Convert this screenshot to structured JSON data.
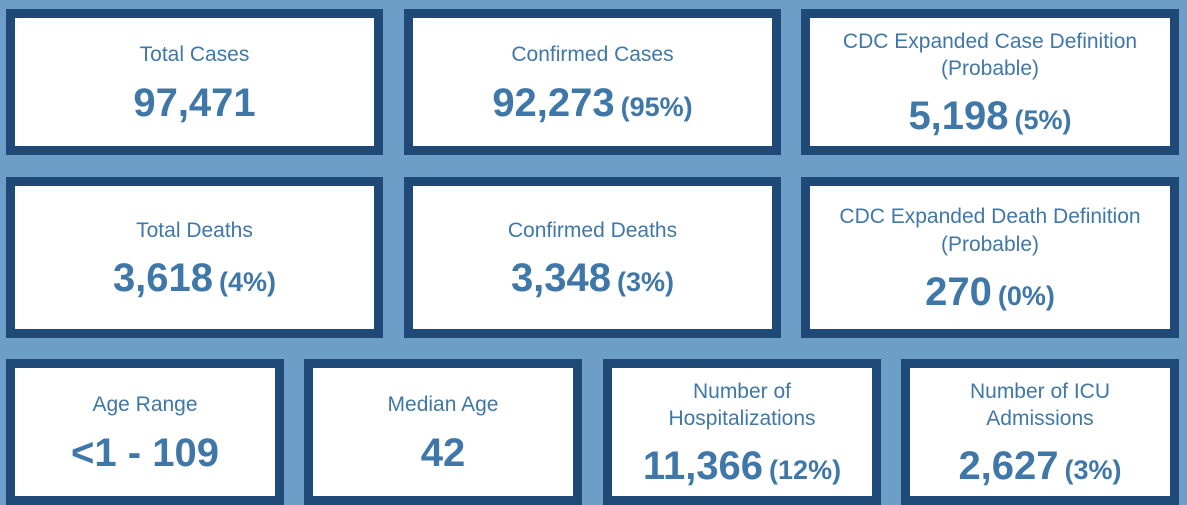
{
  "cards": [
    {
      "label": "Total Cases",
      "value": "97,471",
      "pct": ""
    },
    {
      "label": "Confirmed Cases",
      "value": "92,273",
      "pct": "(95%)"
    },
    {
      "label": "CDC Expanded Case Definition\n(Probable)",
      "value": "5,198",
      "pct": "(5%)"
    },
    {
      "label": "Total Deaths",
      "value": "3,618",
      "pct": "(4%)"
    },
    {
      "label": "Confirmed Deaths",
      "value": "3,348",
      "pct": "(3%)"
    },
    {
      "label": "CDC Expanded Death Definition\n(Probable)",
      "value": "270",
      "pct": "(0%)"
    },
    {
      "label": "Age Range",
      "value": "<1 - 109",
      "pct": ""
    },
    {
      "label": "Median Age",
      "value": "42",
      "pct": ""
    },
    {
      "label": "Number of\nHospitalizations",
      "value": "11,366",
      "pct": "(12%)"
    },
    {
      "label": "Number of ICU\nAdmissions",
      "value": "2,627",
      "pct": "(3%)"
    }
  ],
  "colors": {
    "background": "#6d9ec8",
    "card_border": "#1f4a78",
    "card_fill": "#ffffff",
    "text": "#3f77a8"
  }
}
